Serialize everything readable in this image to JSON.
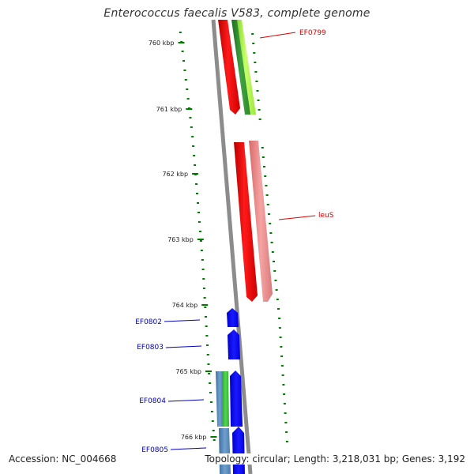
{
  "title": "Enterococcus faecalis V583, complete genome",
  "accession_text": "Accession: NC_004668",
  "genome_info_text": "Topology: circular; Length: 3,218,031 bp; Genes: 3,192",
  "colors": {
    "backbone": "#8c8c8c",
    "tick": "#007a00",
    "label_red": "#dd0000",
    "label_blue": "#0000bb"
  },
  "ticks": [
    {
      "label": "760 kbp"
    },
    {
      "label": "761 kbp"
    },
    {
      "label": "762 kbp"
    },
    {
      "label": "763 kbp"
    },
    {
      "label": "764 kbp"
    },
    {
      "label": "765 kbp"
    },
    {
      "label": "766 kbp"
    }
  ],
  "gene_labels": [
    {
      "text": "EF0799",
      "color": "#dd0000"
    },
    {
      "text": "leuS",
      "color": "#dd0000"
    },
    {
      "text": "EF0802",
      "color": "#0000bb"
    },
    {
      "text": "EF0803",
      "color": "#0000bb"
    },
    {
      "text": "EF0804",
      "color": "#0000bb"
    },
    {
      "text": "EF0805",
      "color": "#0000bb"
    }
  ]
}
